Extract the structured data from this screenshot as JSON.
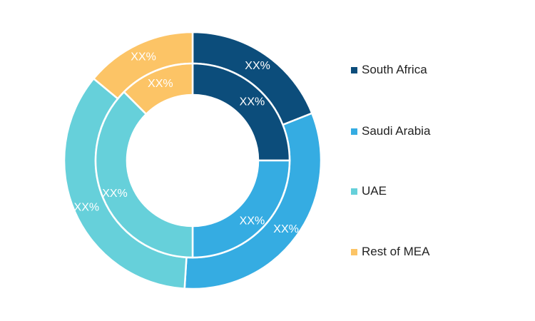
{
  "chart_data": {
    "type": "pie",
    "style": "nested-donut",
    "title": "",
    "categories": [
      "South Africa",
      "Saudi Arabia",
      "UAE",
      "Rest of MEA"
    ],
    "colors": [
      "#0c4d7b",
      "#35ace2",
      "#66d0da",
      "#fcc466"
    ],
    "series": [
      {
        "ring": "outer",
        "values": [
          19,
          32,
          35,
          14
        ],
        "labels": [
          "XX%",
          "XX%",
          "XX%",
          "XX%"
        ]
      },
      {
        "ring": "inner",
        "values": [
          25,
          25,
          37.5,
          12.5
        ],
        "labels": [
          "XX%",
          "XX%",
          "XX%",
          "XX%"
        ]
      }
    ],
    "legend": "right"
  }
}
